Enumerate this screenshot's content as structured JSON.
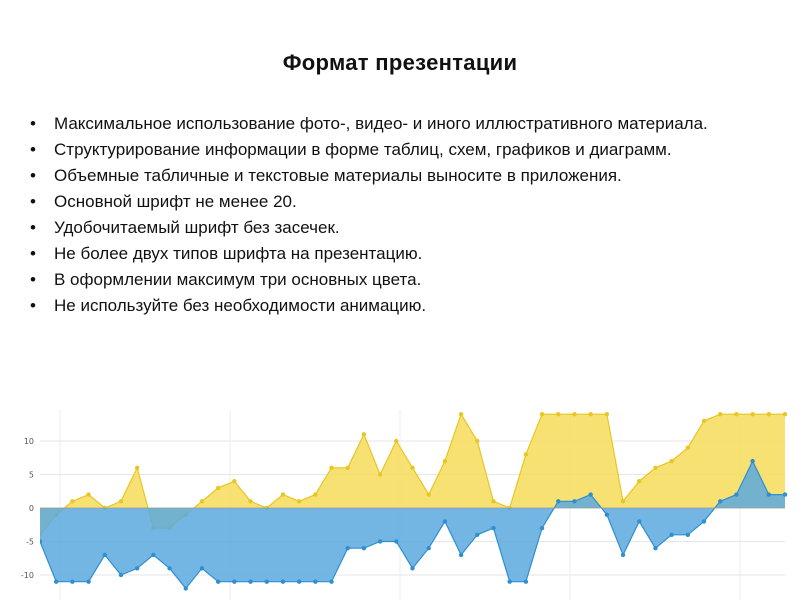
{
  "slide": {
    "title": "Формат презентации",
    "bullets": [
      "Максимальное использование фото-, видео- и иного иллюстративного материала.",
      "Структурирование информации в форме таблиц, схем, графиков и диаграмм.",
      "Объемные табличные и текстовые материалы выносите в приложения.",
      "Основной шрифт не менее 20.",
      "Удобочитаемый шрифт без засечек.",
      "Не более двух типов шрифта на презентацию.",
      "В оформлении максимум три основных цвета.",
      "Не используйте без необходимости анимацию."
    ],
    "bullet_symbol": "•"
  },
  "chart_data": {
    "type": "area",
    "title": "",
    "xlabel": "",
    "ylabel": "",
    "y_ticks": [
      "10",
      "5",
      "0",
      "-5",
      "-10"
    ],
    "ylim": [
      -11,
      14
    ],
    "grid": true,
    "colors": {
      "positive": "#f7dc5b",
      "negative": "#5aa9de",
      "overlap": "#6aa89a",
      "line_pos": "#e8c624",
      "line_neg": "#2f8fcf"
    },
    "series": [
      {
        "values": [
          -4,
          -1,
          1,
          2,
          0,
          1,
          6,
          -3,
          -3,
          -1,
          1,
          3,
          4,
          1,
          0,
          2,
          1,
          2,
          6,
          6,
          11,
          5,
          10,
          6,
          2,
          7,
          14,
          10,
          1,
          0,
          8,
          14,
          14,
          14,
          14,
          14,
          1,
          4,
          6,
          7,
          9,
          13,
          14,
          14,
          14,
          14,
          14
        ]
      },
      {
        "values": [
          -5,
          -11,
          -11,
          -11,
          -7,
          -10,
          -9,
          -7,
          -9,
          -12,
          -9,
          -11,
          -11,
          -11,
          -11,
          -11,
          -11,
          -11,
          -11,
          -6,
          -6,
          -5,
          -5,
          -9,
          -6,
          -2,
          -7,
          -4,
          -3,
          -11,
          -11,
          -3,
          1,
          1,
          2,
          -1,
          -7,
          -2,
          -6,
          -4,
          -4,
          -2,
          1,
          2,
          7,
          2,
          2
        ]
      }
    ]
  }
}
